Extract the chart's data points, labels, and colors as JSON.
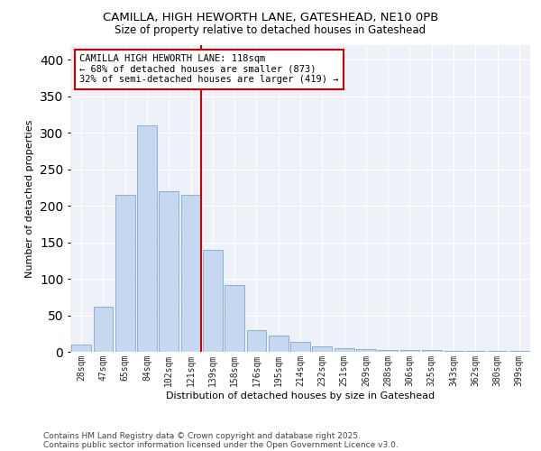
{
  "title_line1": "CAMILLA, HIGH HEWORTH LANE, GATESHEAD, NE10 0PB",
  "title_line2": "Size of property relative to detached houses in Gateshead",
  "xlabel": "Distribution of detached houses by size in Gateshead",
  "ylabel": "Number of detached properties",
  "categories": [
    "28sqm",
    "47sqm",
    "65sqm",
    "84sqm",
    "102sqm",
    "121sqm",
    "139sqm",
    "158sqm",
    "176sqm",
    "195sqm",
    "214sqm",
    "232sqm",
    "251sqm",
    "269sqm",
    "288sqm",
    "306sqm",
    "325sqm",
    "343sqm",
    "362sqm",
    "380sqm",
    "399sqm"
  ],
  "values": [
    10,
    62,
    215,
    310,
    220,
    215,
    140,
    92,
    30,
    22,
    14,
    8,
    5,
    4,
    3,
    2,
    2,
    1,
    1,
    1,
    1
  ],
  "bar_color": "#c5d8f0",
  "bar_edge_color": "#7aaad0",
  "highlight_line_color": "#cc0000",
  "annotation_text": "CAMILLA HIGH HEWORTH LANE: 118sqm\n← 68% of detached houses are smaller (873)\n32% of semi-detached houses are larger (419) →",
  "footnote_line1": "Contains HM Land Registry data © Crown copyright and database right 2025.",
  "footnote_line2": "Contains public sector information licensed under the Open Government Licence v3.0.",
  "ylim": [
    0,
    420
  ],
  "yticks": [
    0,
    50,
    100,
    150,
    200,
    250,
    300,
    350,
    400
  ],
  "background_color": "#eef2f8",
  "grid_color": "#ffffff",
  "red_line_index": 5
}
